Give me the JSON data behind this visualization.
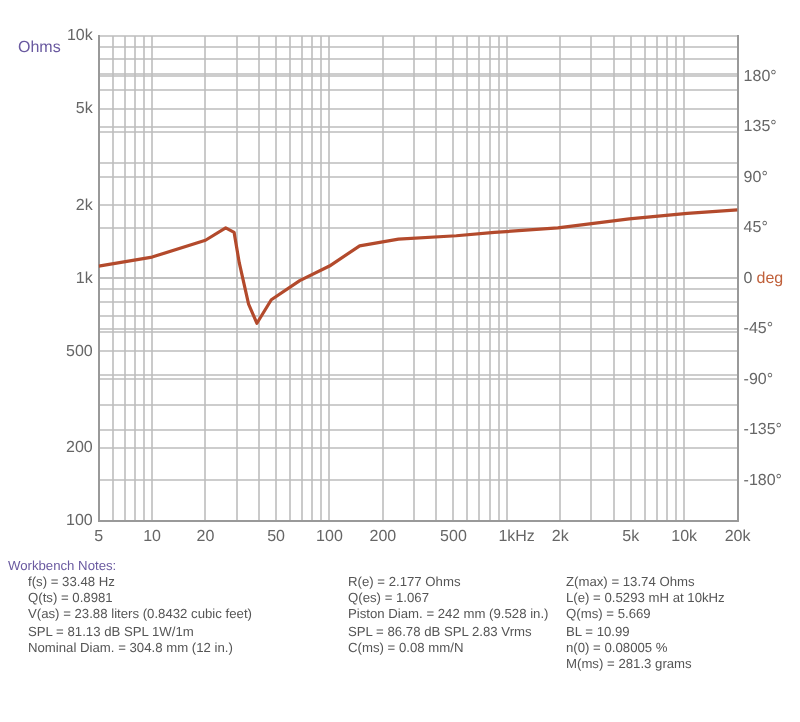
{
  "chart_data": {
    "type": "line",
    "xlabel": "Hz",
    "ylabel": "Ohms",
    "y2label": "deg",
    "x": [
      5,
      10,
      20,
      26,
      29,
      31,
      35,
      39,
      47,
      68,
      100,
      148,
      245,
      519,
      851,
      1940,
      4900,
      10400,
      20000
    ],
    "series": [
      {
        "color": "#b34a2c",
        "axis": "y2",
        "values": [
          11,
          19,
          34,
          45,
          41,
          14,
          -23,
          -40,
          -19,
          -2,
          11,
          29,
          35,
          38,
          41,
          45,
          53,
          58,
          61
        ]
      }
    ],
    "xlim": [
      5,
      20000
    ],
    "xticks": [
      5,
      {
        "value": 6,
        "label": null
      },
      {
        "value": 7,
        "label": null
      },
      {
        "value": 8,
        "label": null
      },
      {
        "value": 9,
        "label": null
      },
      10,
      20,
      {
        "value": 30,
        "label": null
      },
      {
        "value": 40,
        "label": null
      },
      50,
      {
        "value": 60,
        "label": null
      },
      {
        "value": 70,
        "label": null
      },
      {
        "value": 80,
        "label": null
      },
      {
        "value": 90,
        "label": null
      },
      100,
      200,
      {
        "value": 300,
        "label": null
      },
      {
        "value": 400,
        "label": null
      },
      500,
      {
        "value": 600,
        "label": null
      },
      {
        "value": 700,
        "label": null
      },
      {
        "value": 800,
        "label": null
      },
      {
        "value": 900,
        "label": null
      },
      {
        "value": 1000,
        "label": "1k"
      },
      {
        "value": 2000,
        "label": "2k"
      },
      {
        "value": 3000,
        "label": null
      },
      {
        "value": 4000,
        "label": null
      },
      {
        "value": 5000,
        "label": "5k"
      },
      {
        "value": 6000,
        "label": null
      },
      {
        "value": 7000,
        "label": null
      },
      {
        "value": 8000,
        "label": null
      },
      {
        "value": 9000,
        "label": null
      },
      {
        "value": 10000,
        "label": "10k"
      },
      {
        "value": 20000,
        "label": "20k"
      }
    ],
    "ylim": [
      100,
      10000
    ],
    "yticks": [
      100,
      200,
      {
        "value": 300,
        "label": null
      },
      {
        "value": 400,
        "label": null
      },
      500,
      {
        "value": 600,
        "label": null
      },
      {
        "value": 700,
        "label": null
      },
      {
        "value": 800,
        "label": null
      },
      {
        "value": 900,
        "label": null
      },
      {
        "value": 1000,
        "label": "1k"
      },
      {
        "value": 2000,
        "label": "2k"
      },
      {
        "value": 3000,
        "label": null
      },
      {
        "value": 4000,
        "label": null
      },
      {
        "value": 5000,
        "label": "5k"
      },
      {
        "value": 6000,
        "label": null
      },
      {
        "value": 7000,
        "label": null
      },
      {
        "value": 8000,
        "label": null
      },
      {
        "value": 9000,
        "label": null
      },
      {
        "value": 10000,
        "label": "10k"
      }
    ],
    "y2lim": [
      -216,
      216
    ],
    "y2ticks": [
      {
        "value": -180,
        "label": "-180°"
      },
      {
        "value": -135,
        "label": "-135°"
      },
      {
        "value": -90,
        "label": "-90°"
      },
      {
        "value": -45,
        "label": "-45°"
      },
      0,
      {
        "value": 45,
        "label": "45°"
      },
      {
        "value": 90,
        "label": "90°"
      },
      {
        "value": 135,
        "label": "135°"
      },
      {
        "value": 180,
        "label": "180°"
      }
    ],
    "log": "xy",
    "grid": true,
    "legend": false,
    "marker": "none",
    "line_style": "solid",
    "annotations": [
      "Workbench Notes:",
      "f(s) = 33.48 Hz\nQ(ts) = 0.8981\nV(as) = 23.88 liters  (0.8432 cubic feet)\nSPL = 81.13 dB SPL 1W/1m\nNominal Diam. = 304.8 mm (12 in.)",
      "R(e) = 2.177 Ohms\nQ(es) = 1.067\nPiston Diam. = 242 mm (9.528 in.)\nSPL = 86.78 dB SPL 2.83 Vrms\nC(ms) = 0.08 mm/N",
      "Z(max) = 13.74 Ohms\nL(e) = 0.5293 mH at 10kHz\nQ(ms) = 5.669\nBL = 10.99\nn(0) = 0.08005 %\nM(ms) = 281.3 grams"
    ]
  }
}
